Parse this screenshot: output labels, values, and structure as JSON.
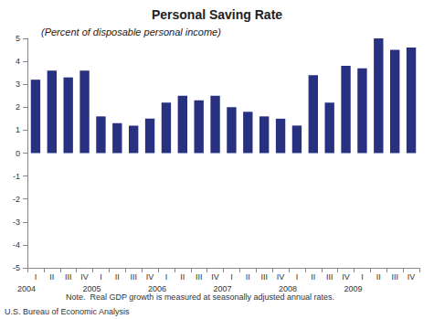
{
  "chart_data": {
    "type": "bar",
    "title": "Personal Saving Rate",
    "subtitle": "(Percent of disposable personal income)",
    "categories": [
      "I",
      "II",
      "III",
      "IV",
      "I",
      "II",
      "III",
      "IV",
      "I",
      "II",
      "III",
      "IV",
      "I",
      "II",
      "III",
      "IV",
      "I",
      "II",
      "III",
      "IV",
      "I",
      "II",
      "III",
      "IV"
    ],
    "year_labels": [
      "2004",
      "2005",
      "2006",
      "2007",
      "2008",
      "2009"
    ],
    "values": [
      3.2,
      3.6,
      3.3,
      3.6,
      1.6,
      1.3,
      1.2,
      1.5,
      2.2,
      2.5,
      2.3,
      2.5,
      2.0,
      1.8,
      1.6,
      1.5,
      1.2,
      3.4,
      2.2,
      3.8,
      3.7,
      5.0,
      4.5,
      4.6
    ],
    "color": "#27317f",
    "ylim": [
      -5,
      5
    ],
    "yticks": [
      -5,
      -4,
      -3,
      -2,
      -1,
      0,
      1,
      2,
      3,
      4,
      5
    ],
    "grid": false,
    "note": "Note.  Real GDP growth is measured at seasonally adjusted annual rates.",
    "source": "U.S. Bureau of Economic Analysis"
  }
}
